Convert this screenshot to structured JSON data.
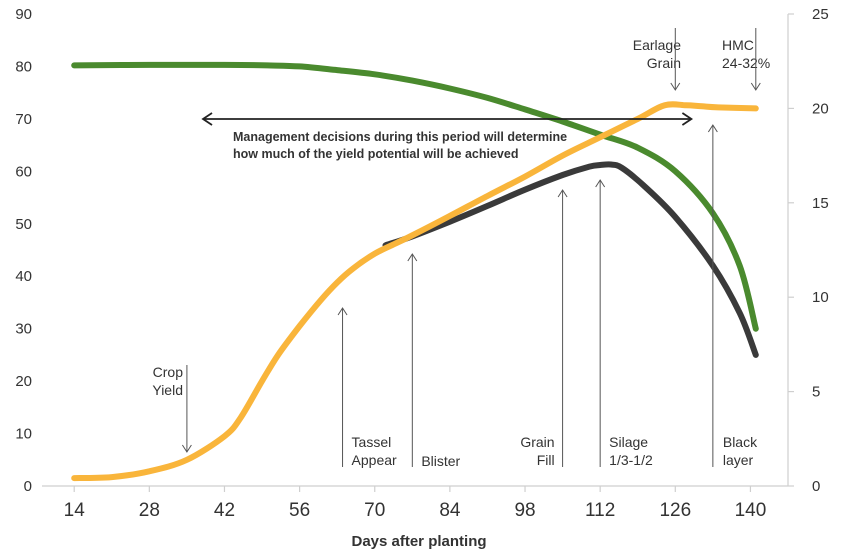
{
  "chart_data": {
    "type": "line",
    "title": "",
    "xlabel": "Days after planting",
    "ylabel_left": "",
    "ylabel_right": "",
    "xlim": [
      8,
      147
    ],
    "ylim_left": [
      0,
      90
    ],
    "ylim_right": [
      0,
      25
    ],
    "x_ticks": [
      14,
      28,
      42,
      56,
      70,
      84,
      98,
      112,
      126,
      140
    ],
    "y_ticks_left": [
      0,
      10,
      20,
      30,
      40,
      50,
      60,
      70,
      80,
      90
    ],
    "y_ticks_right": [
      0,
      5,
      10,
      15,
      20,
      25
    ],
    "grid": false,
    "legend": "none",
    "series": [
      {
        "color": "#4a8a2e",
        "axis": "left",
        "points": [
          [
            14,
            80.2
          ],
          [
            28,
            80.3
          ],
          [
            42,
            80.3
          ],
          [
            50,
            80.2
          ],
          [
            56,
            80.0
          ],
          [
            63,
            79.3
          ],
          [
            70,
            78.5
          ],
          [
            77,
            77.3
          ],
          [
            84,
            75.8
          ],
          [
            91,
            74.0
          ],
          [
            98,
            71.8
          ],
          [
            105,
            69.5
          ],
          [
            112,
            67.0
          ],
          [
            119,
            64.5
          ],
          [
            126,
            60.0
          ],
          [
            133,
            52.0
          ],
          [
            138,
            42.0
          ],
          [
            141,
            30.0
          ]
        ]
      },
      {
        "color": "#3a3a3a",
        "axis": "left",
        "points": [
          [
            72,
            45.9
          ],
          [
            77,
            47.6
          ],
          [
            84,
            50.4
          ],
          [
            91,
            53.4
          ],
          [
            98,
            56.5
          ],
          [
            105,
            59.3
          ],
          [
            110,
            60.9
          ],
          [
            112,
            61.2
          ],
          [
            114,
            61.3
          ],
          [
            116,
            60.7
          ],
          [
            120,
            57.4
          ],
          [
            126,
            51.3
          ],
          [
            133,
            42.0
          ],
          [
            138,
            33.0
          ],
          [
            141,
            25.0
          ]
        ]
      },
      {
        "color": "#f9b53b",
        "axis": "left",
        "points": [
          [
            14,
            1.5
          ],
          [
            21,
            1.7
          ],
          [
            28,
            2.8
          ],
          [
            35,
            5.0
          ],
          [
            42,
            9.5
          ],
          [
            45,
            13.0
          ],
          [
            49,
            20.0
          ],
          [
            52,
            25.0
          ],
          [
            56,
            30.5
          ],
          [
            60,
            35.5
          ],
          [
            63,
            38.8
          ],
          [
            66,
            41.5
          ],
          [
            70,
            44.3
          ],
          [
            74,
            46.3
          ],
          [
            77,
            47.8
          ],
          [
            84,
            51.5
          ],
          [
            91,
            55.3
          ],
          [
            98,
            59.0
          ],
          [
            105,
            63.0
          ],
          [
            112,
            66.5
          ],
          [
            119,
            70.0
          ],
          [
            124,
            72.6
          ],
          [
            128,
            72.6
          ],
          [
            131,
            72.4
          ],
          [
            134,
            72.2
          ],
          [
            141,
            72.0
          ]
        ]
      }
    ],
    "annotations": {
      "crop_yield": {
        "lines": [
          "Crop",
          "Yield"
        ],
        "x": 35
      },
      "tassel": {
        "lines": [
          "Tassel",
          "Appear"
        ],
        "x": 64
      },
      "blister": {
        "lines": [
          "Blister"
        ],
        "x": 77
      },
      "grain_fill": {
        "lines": [
          "Grain",
          "Fill"
        ],
        "x": 105
      },
      "silage": {
        "lines": [
          "Silage",
          "1/3-1/2"
        ],
        "x": 112
      },
      "black_layer": {
        "lines": [
          "Black",
          "layer"
        ],
        "x": 133
      },
      "earlage": {
        "lines": [
          "Earlage",
          "Grain"
        ],
        "x": 126
      },
      "hmc": {
        "lines": [
          "HMC",
          "24-32%"
        ],
        "x": 141
      },
      "management": {
        "lines": [
          "Management decisions during this period will determine",
          "how much of the yield potential will be achieved"
        ],
        "x_start": 38,
        "x_end": 129
      }
    }
  }
}
